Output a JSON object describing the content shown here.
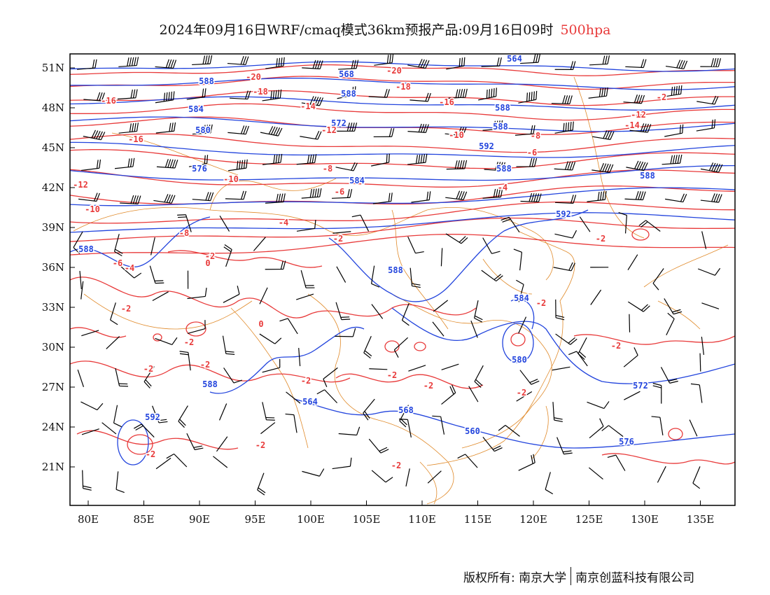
{
  "title": {
    "main": "2024年09月16日WRF/cmaq模式36km预报产品:09月16日09时",
    "level": "500hpa"
  },
  "axes": {
    "lon_labels": [
      "80E",
      "85E",
      "90E",
      "95E",
      "100E",
      "105E",
      "110E",
      "115E",
      "120E",
      "125E",
      "130E",
      "135E"
    ],
    "lat_labels": [
      "51N",
      "48N",
      "45N",
      "42N",
      "39N",
      "36N",
      "33N",
      "30N",
      "27N",
      "24N",
      "21N"
    ]
  },
  "colors": {
    "height_contour": "#2244dd",
    "temperature_contour": "#e83a3a",
    "border": "#e08a2a",
    "wind_barb": "#000000"
  },
  "height_labels": [
    "588",
    "584",
    "580",
    "576",
    "572",
    "568",
    "564",
    "592",
    "588",
    "584",
    "580",
    "576",
    "572",
    "568",
    "564",
    "560",
    "588",
    "592",
    "588",
    "584",
    "588",
    "592",
    "588",
    "588",
    "588",
    "588"
  ],
  "temp_labels": [
    "-20",
    "-18",
    "-16",
    "-14",
    "-12",
    "-10",
    "-8",
    "-6",
    "-4",
    "-2",
    "0",
    "-2",
    "-2",
    "-4",
    "-6",
    "-8",
    "-10",
    "-12",
    "-16",
    "-18",
    "-20",
    "-12",
    "-16",
    "-14",
    "-10",
    "-8",
    "-6",
    "-4",
    "-2",
    "-2",
    "0",
    "-2",
    "-2",
    "-2",
    "-2",
    "-2",
    "-2",
    "-2",
    "-2",
    "-2",
    "-2",
    "-2",
    "-2"
  ],
  "footer": {
    "left": "版权所有: 南京大学",
    "right": "南京创蓝科技有限公司"
  }
}
